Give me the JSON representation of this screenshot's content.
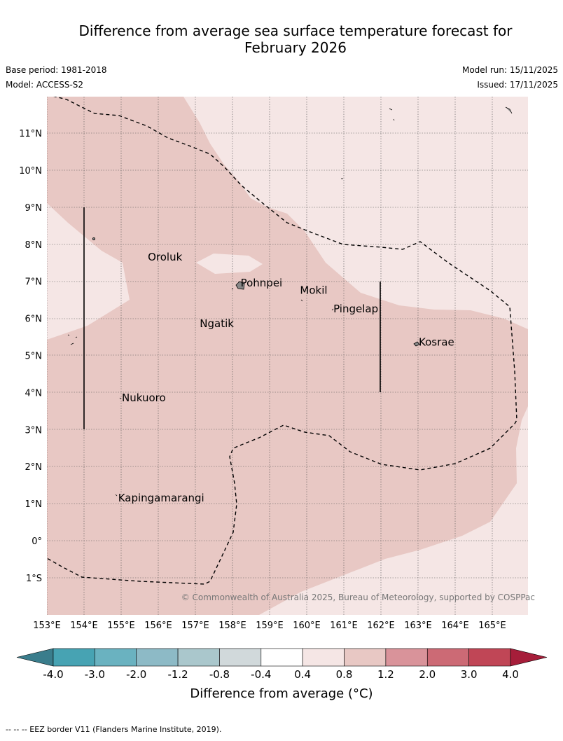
{
  "title_line1": "Difference from average sea surface temperature forecast for",
  "title_line2": "February 2026",
  "base_period": "Base period: 1981-2018",
  "model": "Model: ACCESS-S2",
  "model_run": "Model run: 15/11/2025",
  "issued": "Issued: 17/11/2025",
  "copyright": "© Commonwealth of Australia 2025, Bureau of Meteorology, supported by COSPPac",
  "lon_labels": [
    "153°E",
    "154°E",
    "155°E",
    "156°E",
    "157°E",
    "158°E",
    "159°E",
    "160°E",
    "161°E",
    "162°E",
    "163°E",
    "164°E",
    "165°E"
  ],
  "lon_values": [
    153,
    154,
    155,
    156,
    157,
    158,
    159,
    160,
    161,
    162,
    163,
    164,
    165
  ],
  "lat_labels": [
    "11°N",
    "10°N",
    "9°N",
    "8°N",
    "7°N",
    "6°N",
    "5°N",
    "4°N",
    "3°N",
    "2°N",
    "1°N",
    "0°",
    "1°S"
  ],
  "lat_values": [
    11,
    10,
    9,
    8,
    7,
    6,
    5,
    4,
    3,
    2,
    1,
    0,
    -1
  ],
  "places": [
    {
      "name": "Oroluk",
      "lon": 155.7,
      "lat": 7.6
    },
    {
      "name": "Pohnpei",
      "lon": 158.2,
      "lat": 6.9
    },
    {
      "name": "Mokil",
      "lon": 159.8,
      "lat": 6.7
    },
    {
      "name": "Pingelap",
      "lon": 160.7,
      "lat": 6.2
    },
    {
      "name": "Ngatik",
      "lon": 157.1,
      "lat": 5.8
    },
    {
      "name": "Kosrae",
      "lon": 163.0,
      "lat": 5.3
    },
    {
      "name": "Nukuoro",
      "lon": 155.0,
      "lat": 3.8
    },
    {
      "name": "Kapingamarangi",
      "lon": 154.9,
      "lat": 1.1
    }
  ],
  "colorbar": {
    "ticks": [
      "-4.0",
      "-3.0",
      "-2.0",
      "-1.2",
      "-0.8",
      "-0.4",
      "0.4",
      "0.8",
      "1.2",
      "2.0",
      "3.0",
      "4.0"
    ],
    "colors": [
      "#47a3b3",
      "#6ab2c0",
      "#8dbac6",
      "#aac7cc",
      "#d1d9db",
      "#ffffff",
      "#f5e6e5",
      "#e8c8c4",
      "#d9939a",
      "#cc6a75",
      "#c04656"
    ],
    "low_extend_color": "#3a7d8c",
    "high_extend_color": "#a61e3a",
    "label": "Difference from average (°C)"
  },
  "footnote": "-- -- -- EEZ border V11 (Flanders Marine Institute, 2019)."
}
